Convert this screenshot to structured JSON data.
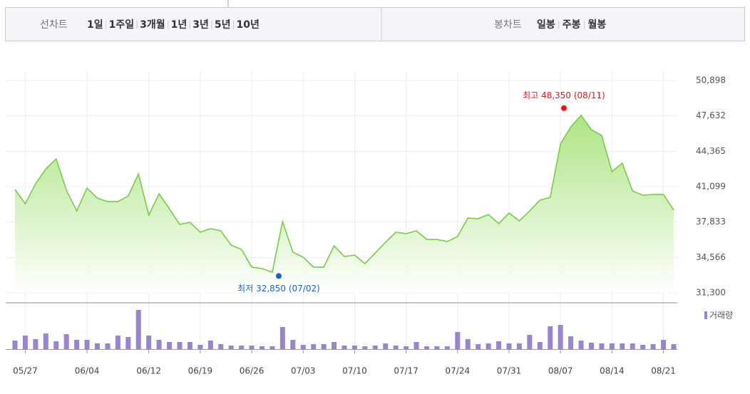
{
  "toolbar": {
    "line_label": "선차트",
    "periods": [
      "1일",
      "1주일",
      "3개월",
      "1년",
      "3년",
      "5년",
      "10년"
    ],
    "selected": 2,
    "candle_label": "봉차트",
    "candles": [
      "일봉",
      "주봉",
      "월봉"
    ]
  },
  "chart_data": {
    "type": "area",
    "color": "#78cc45",
    "categories": [
      null,
      "05/27",
      null,
      null,
      null,
      null,
      null,
      "06/04",
      null,
      null,
      null,
      null,
      null,
      "06/12",
      null,
      null,
      null,
      null,
      "06/19",
      null,
      null,
      null,
      null,
      "06/26",
      null,
      null,
      null,
      null,
      "07/03",
      null,
      null,
      null,
      null,
      "07/10",
      null,
      null,
      null,
      null,
      "07/17",
      null,
      null,
      null,
      null,
      "07/24",
      null,
      null,
      null,
      null,
      "07/31",
      null,
      null,
      null,
      null,
      "08/07",
      null,
      null,
      null,
      null,
      "08/14",
      null,
      null,
      null,
      null,
      "08/21",
      null
    ],
    "values": [
      40836,
      39520,
      41360,
      42740,
      43660,
      40770,
      38860,
      40970,
      40050,
      39720,
      39720,
      40240,
      42280,
      38470,
      40440,
      39060,
      37610,
      37810,
      36890,
      37220,
      37020,
      35710,
      35310,
      33670,
      33540,
      33210,
      37880,
      35050,
      34590,
      33670,
      33670,
      35640,
      34650,
      34780,
      33990,
      34980,
      35970,
      36890,
      36760,
      37020,
      36230,
      36230,
      36030,
      36500,
      38210,
      38140,
      38530,
      37680,
      38670,
      37940,
      38860,
      39850,
      40110,
      45050,
      46620,
      47680,
      46360,
      45830,
      42480,
      43270,
      40700,
      40310,
      40380,
      40380,
      38930
    ],
    "ylim": [
      31300,
      50898
    ],
    "yticks": [
      {
        "value": 31300,
        "label": "31,300"
      },
      {
        "value": 34566,
        "label": "34,566"
      },
      {
        "value": 37833,
        "label": "37,833"
      },
      {
        "value": 41099,
        "label": "41,099"
      },
      {
        "value": 44365,
        "label": "44,365"
      },
      {
        "value": 47632,
        "label": "47,632"
      },
      {
        "value": 50898,
        "label": "50,898"
      }
    ],
    "grid": true,
    "annotations": [
      {
        "text": "최고 48,350 (08/11)",
        "value": 48350,
        "color": "#e8141b"
      },
      {
        "text": "최저 32,850 (07/02)",
        "value": 32850,
        "color": "#1a62c8"
      }
    ],
    "volume": {
      "name": "거래량",
      "color": "#9a84d0",
      "ylim": [
        0,
        60
      ],
      "values": [
        12,
        19,
        14,
        22,
        11,
        21,
        13,
        13,
        8,
        8,
        19,
        17,
        55,
        19,
        13,
        10,
        10,
        10,
        6,
        12,
        7,
        5,
        5,
        5,
        4,
        4,
        31,
        13,
        6,
        7,
        7,
        10,
        5,
        5,
        4,
        5,
        8,
        5,
        4,
        10,
        4,
        4,
        4,
        24,
        14,
        7,
        8,
        11,
        8,
        8,
        20,
        10,
        32,
        34,
        18,
        12,
        9,
        8,
        8,
        8,
        8,
        6,
        7,
        13,
        7
      ]
    }
  }
}
